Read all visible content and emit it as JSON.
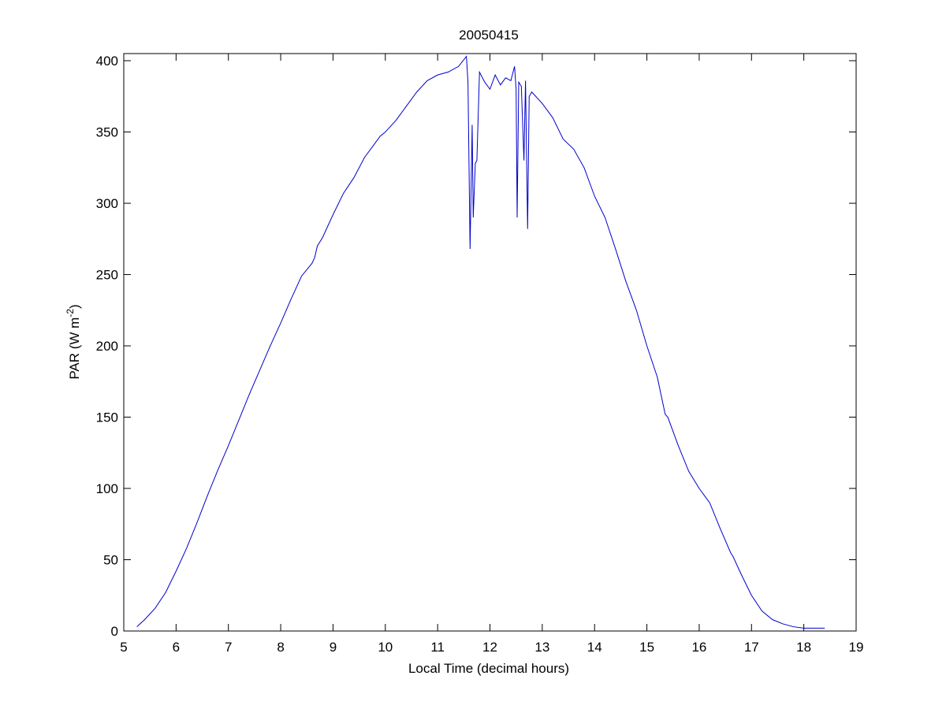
{
  "chart_data": {
    "type": "line",
    "title": "20050415",
    "xlabel": "Local Time (decimal hours)",
    "ylabel": "PAR (W m",
    "ylabel_superscript": "-2",
    "ylabel_suffix": ")",
    "xlim": [
      5,
      19
    ],
    "ylim": [
      0,
      405
    ],
    "xticks": [
      "5",
      "6",
      "7",
      "8",
      "9",
      "10",
      "11",
      "12",
      "13",
      "14",
      "15",
      "16",
      "17",
      "18",
      "19"
    ],
    "yticks": [
      "0",
      "50",
      "100",
      "150",
      "200",
      "250",
      "300",
      "350",
      "400"
    ],
    "grid": false,
    "legend": "none",
    "line_color": "#0000cc",
    "series": [
      {
        "x": [
          5.25,
          5.4,
          5.6,
          5.8,
          6.0,
          6.2,
          6.4,
          6.6,
          6.8,
          7.0,
          7.2,
          7.4,
          7.6,
          7.8,
          8.0,
          8.2,
          8.4,
          8.6,
          8.65,
          8.7,
          8.8,
          9.0,
          9.2,
          9.4,
          9.6,
          9.8,
          9.9,
          10.0,
          10.2,
          10.4,
          10.6,
          10.8,
          11.0,
          11.2,
          11.4,
          11.55,
          11.58,
          11.62,
          11.66,
          11.68,
          11.72,
          11.75,
          11.8,
          11.9,
          12.0,
          12.1,
          12.2,
          12.3,
          12.4,
          12.47,
          12.5,
          12.52,
          12.55,
          12.6,
          12.65,
          12.68,
          12.72,
          12.75,
          12.8,
          13.0,
          13.2,
          13.4,
          13.6,
          13.8,
          14.0,
          14.2,
          14.4,
          14.6,
          14.8,
          15.0,
          15.2,
          15.35,
          15.4,
          15.6,
          15.8,
          16.0,
          16.1,
          16.2,
          16.4,
          16.6,
          16.65,
          16.8,
          17.0,
          17.2,
          17.4,
          17.6,
          17.8,
          18.0,
          18.2,
          18.4
        ],
        "y": [
          3,
          8,
          16,
          27,
          42,
          58,
          76,
          95,
          113,
          130,
          148,
          166,
          183,
          200,
          216,
          233,
          249,
          258,
          262,
          270,
          276,
          292,
          307,
          318,
          332,
          342,
          347,
          350,
          358,
          368,
          378,
          386,
          390,
          392,
          396,
          403,
          385,
          268,
          355,
          290,
          328,
          330,
          392,
          385,
          380,
          390,
          383,
          388,
          386,
          396,
          380,
          290,
          385,
          382,
          330,
          386,
          282,
          375,
          378,
          370,
          360,
          345,
          338,
          325,
          305,
          290,
          268,
          245,
          225,
          200,
          178,
          152,
          150,
          130,
          112,
          100,
          95,
          90,
          72,
          55,
          52,
          40,
          25,
          14,
          8,
          5,
          3,
          2,
          2,
          2
        ]
      }
    ]
  }
}
